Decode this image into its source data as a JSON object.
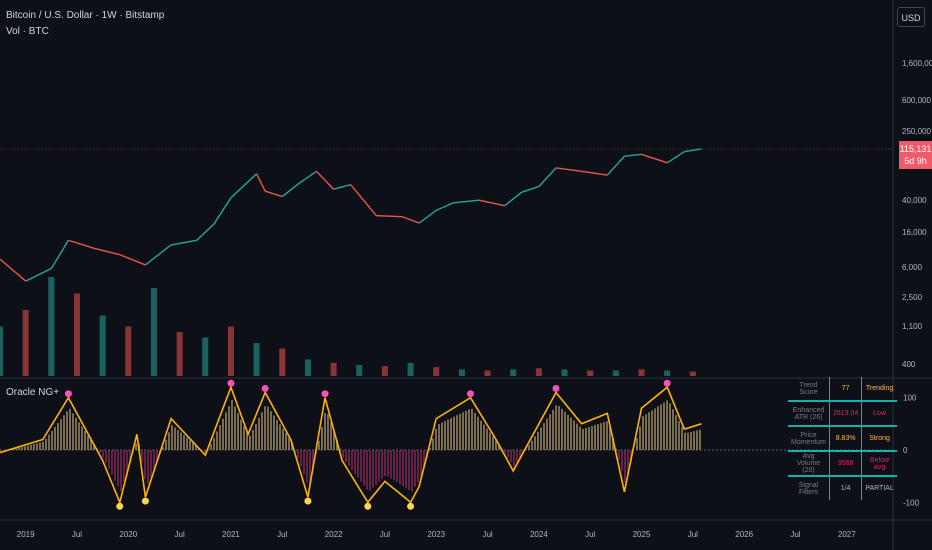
{
  "header": {
    "title": "Bitcoin / U.S. Dollar · 1W · Bitstamp",
    "vol_label": "Vol · BTC",
    "currency": "USD",
    "indicator_name": "Oracle NG+"
  },
  "price_tag": {
    "price": "115,131",
    "countdown": "5d 9h"
  },
  "price_axis": {
    "ticks": [
      "1,600,000",
      "600,000",
      "250,000",
      "40,000",
      "16,000",
      "6,000",
      "2,500",
      "1,100",
      "400"
    ]
  },
  "osc_axis": {
    "ticks": [
      "100",
      "0",
      "-100"
    ]
  },
  "time_axis": {
    "ticks": [
      "2019",
      "Jul",
      "2020",
      "Jul",
      "2021",
      "Jul",
      "2022",
      "Jul",
      "2023",
      "Jul",
      "2024",
      "Jul",
      "2025",
      "Jul",
      "2026",
      "Jul",
      "2027"
    ]
  },
  "info_table": [
    {
      "label": "Trend Score",
      "value": "77",
      "status": "Trending",
      "value_color": "#ffb74d",
      "status_color": "#ffb74d"
    },
    {
      "label": "Enhanced ATR (26)",
      "value": "2613.04",
      "status": "Low",
      "value_color": "#e91e63",
      "status_color": "#e91e63"
    },
    {
      "label": "Price Momentum",
      "value": "8.83%",
      "status": "Strong",
      "value_color": "#ffb74d",
      "status_color": "#ffb74d"
    },
    {
      "label": "Avg Volume (20)",
      "value": "9568",
      "status": "Below avg",
      "value_color": "#e91e63",
      "status_color": "#e91e63"
    },
    {
      "label": "Signal Filters",
      "value": "1/4",
      "status": "PARTIAL",
      "value_color": "#b2b5be",
      "status_color": "#b2b5be"
    }
  ],
  "chart_data": [
    {
      "type": "line",
      "title": "Bitcoin / U.S. Dollar · 1W · Bitstamp",
      "y_scale": "log",
      "last_price": 115131,
      "x": [
        "2018-10",
        "2019-01",
        "2019-04",
        "2019-06",
        "2019-09",
        "2019-12",
        "2020-03",
        "2020-06",
        "2020-09",
        "2020-11",
        "2021-01",
        "2021-04",
        "2021-05",
        "2021-07",
        "2021-09",
        "2021-11",
        "2022-01",
        "2022-03",
        "2022-06",
        "2022-09",
        "2022-11",
        "2023-01",
        "2023-03",
        "2023-06",
        "2023-09",
        "2023-11",
        "2024-01",
        "2024-03",
        "2024-06",
        "2024-09",
        "2024-11",
        "2025-01",
        "2025-04",
        "2025-06",
        "2025-08"
      ],
      "values": [
        6400,
        3600,
        5000,
        10500,
        8500,
        7200,
        5500,
        9300,
        10500,
        16000,
        32000,
        60000,
        38000,
        33000,
        47000,
        64000,
        40000,
        45000,
        20000,
        19500,
        16500,
        23000,
        28000,
        30000,
        26000,
        37000,
        43000,
        70000,
        64000,
        58000,
        95000,
        100000,
        80000,
        107000,
        115131
      ]
    },
    {
      "type": "bar",
      "title": "Vol · BTC",
      "note": "weekly volume histogram, relative scale 0-1",
      "x": [
        "2018-10",
        "2019-01",
        "2019-04",
        "2019-07",
        "2019-10",
        "2020-01",
        "2020-04",
        "2020-07",
        "2020-10",
        "2021-01",
        "2021-04",
        "2021-07",
        "2021-10",
        "2022-01",
        "2022-04",
        "2022-07",
        "2022-10",
        "2023-01",
        "2023-04",
        "2023-07",
        "2023-10",
        "2024-01",
        "2024-04",
        "2024-07",
        "2024-10",
        "2025-01",
        "2025-04",
        "2025-07"
      ],
      "values": [
        0.45,
        0.6,
        0.9,
        0.75,
        0.55,
        0.45,
        0.8,
        0.4,
        0.35,
        0.45,
        0.3,
        0.25,
        0.15,
        0.12,
        0.1,
        0.09,
        0.12,
        0.08,
        0.06,
        0.05,
        0.06,
        0.07,
        0.06,
        0.05,
        0.05,
        0.06,
        0.05,
        0.04
      ]
    },
    {
      "type": "line",
      "title": "Oracle NG+",
      "ylim": [
        -130,
        130
      ],
      "x": [
        "2018-10",
        "2019-03",
        "2019-06",
        "2019-10",
        "2019-12",
        "2020-02",
        "2020-03",
        "2020-06",
        "2020-10",
        "2021-01",
        "2021-03",
        "2021-05",
        "2021-08",
        "2021-10",
        "2021-12",
        "2022-02",
        "2022-05",
        "2022-07",
        "2022-10",
        "2022-11",
        "2023-01",
        "2023-05",
        "2023-08",
        "2023-10",
        "2024-03",
        "2024-06",
        "2024-09",
        "2024-11",
        "2025-01",
        "2025-04",
        "2025-06",
        "2025-08"
      ],
      "series": [
        {
          "values": [
            -5,
            20,
            100,
            -20,
            -100,
            30,
            -90,
            60,
            -10,
            120,
            30,
            110,
            20,
            -90,
            100,
            -20,
            -100,
            -60,
            -100,
            -70,
            60,
            100,
            20,
            -40,
            110,
            50,
            70,
            -80,
            80,
            120,
            40,
            50
          ]
        }
      ]
    }
  ]
}
